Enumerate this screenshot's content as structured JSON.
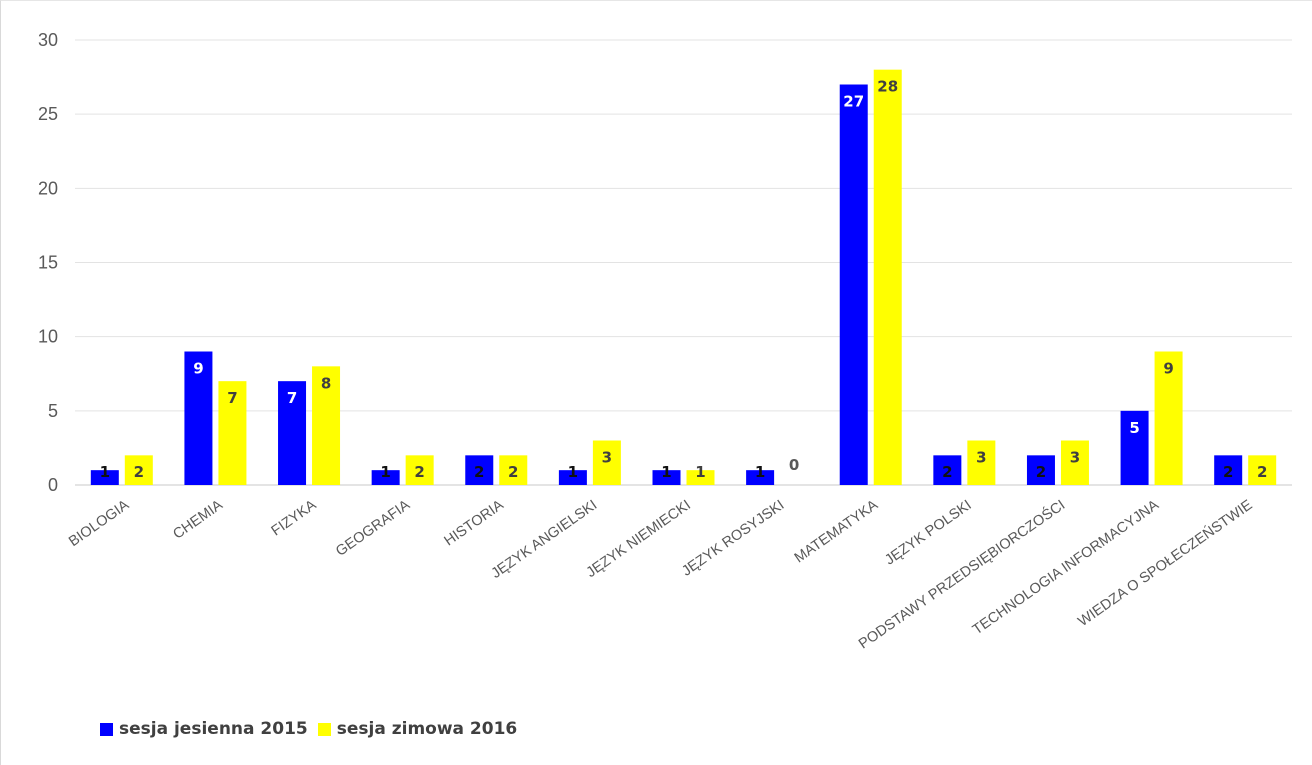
{
  "colors": {
    "series1": "#0000ff",
    "series2": "#ffff00",
    "grid": "#e3e3e3",
    "axis": "#c8c8c8"
  },
  "chart_data": {
    "type": "bar",
    "title": "",
    "xlabel": "",
    "ylabel": "",
    "ylim": [
      0,
      30
    ],
    "yticks": [
      0,
      5,
      10,
      15,
      20,
      25,
      30
    ],
    "grid": true,
    "legend": "bottom-left",
    "categories": [
      "BIOLOGIA",
      "CHEMIA",
      "FIZYKA",
      "GEOGRAFIA",
      "HISTORIA",
      "JĘZYK ANGIELSKI",
      "JĘZYK NIEMIECKI",
      "JĘZYK ROSYJSKI",
      "MATEMATYKA",
      "JĘZYK POLSKI",
      "PODSTAWY PRZEDSIĘBIORCZOŚCI",
      "TECHNOLOGIA INFORMACYJNA",
      "WIEDZA O SPOŁECZEŃSTWIE"
    ],
    "series": [
      {
        "name": "sesja jesienna 2015",
        "color": "#0000ff",
        "values": [
          1,
          9,
          7,
          1,
          2,
          1,
          1,
          1,
          27,
          2,
          2,
          5,
          2
        ]
      },
      {
        "name": "sesja zimowa 2016",
        "color": "#ffff00",
        "values": [
          2,
          7,
          8,
          2,
          2,
          3,
          1,
          0,
          28,
          3,
          3,
          9,
          2
        ]
      }
    ]
  }
}
